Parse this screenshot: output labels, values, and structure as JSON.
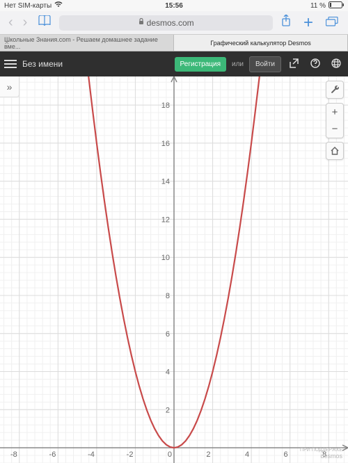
{
  "status": {
    "carrier": "Нет SIM-карты",
    "time": "15:56",
    "battery_pct": "11 %"
  },
  "safari": {
    "url_host": "desmos.com",
    "tabs": [
      {
        "label": "Школьные Знания.com - Решаем домашнее задание вме...",
        "active": false
      },
      {
        "label": "Графический калькулятор Desmos",
        "active": true
      }
    ]
  },
  "app_toolbar": {
    "title": "Без имени",
    "register": "Регистрация",
    "or": "или",
    "login": "Войти"
  },
  "graph": {
    "type": "line",
    "function": "y = x^2",
    "curve_color": "#c84a4a",
    "curve_width": 2.2,
    "background": "#ffffff",
    "grid_minor_color": "#f0f0f0",
    "grid_major_color": "#dcdcdc",
    "axis_color": "#808080",
    "tick_color": "#666666",
    "tick_fontsize": 11,
    "xlim": [
      -9,
      9
    ],
    "ylim": [
      -0.8,
      19.5
    ],
    "xtick_step": 2,
    "ytick_step": 2,
    "minor_per_major": 5,
    "x_ticks": [
      -8,
      -6,
      -4,
      -2,
      0,
      2,
      4,
      6,
      8
    ],
    "y_ticks": [
      2,
      4,
      6,
      8,
      10,
      12,
      14,
      16,
      18
    ],
    "points": [
      [
        -4.42,
        19.5
      ],
      [
        -4.2,
        17.64
      ],
      [
        -4,
        16
      ],
      [
        -3.8,
        14.44
      ],
      [
        -3.6,
        12.96
      ],
      [
        -3.4,
        11.56
      ],
      [
        -3.2,
        10.24
      ],
      [
        -3,
        9
      ],
      [
        -2.8,
        7.84
      ],
      [
        -2.6,
        6.76
      ],
      [
        -2.4,
        5.76
      ],
      [
        -2.2,
        4.84
      ],
      [
        -2,
        4
      ],
      [
        -1.8,
        3.24
      ],
      [
        -1.6,
        2.56
      ],
      [
        -1.4,
        1.96
      ],
      [
        -1.2,
        1.44
      ],
      [
        -1,
        1
      ],
      [
        -0.8,
        0.64
      ],
      [
        -0.6,
        0.36
      ],
      [
        -0.4,
        0.16
      ],
      [
        -0.2,
        0.04
      ],
      [
        0,
        0
      ],
      [
        0.2,
        0.04
      ],
      [
        0.4,
        0.16
      ],
      [
        0.6,
        0.36
      ],
      [
        0.8,
        0.64
      ],
      [
        1,
        1
      ],
      [
        1.2,
        1.44
      ],
      [
        1.4,
        1.96
      ],
      [
        1.6,
        2.56
      ],
      [
        1.8,
        3.24
      ],
      [
        2,
        4
      ],
      [
        2.2,
        4.84
      ],
      [
        2.4,
        5.76
      ],
      [
        2.6,
        6.76
      ],
      [
        2.8,
        7.84
      ],
      [
        3,
        9
      ],
      [
        3.2,
        10.24
      ],
      [
        3.4,
        11.56
      ],
      [
        3.6,
        12.96
      ],
      [
        3.8,
        14.44
      ],
      [
        4,
        16
      ],
      [
        4.2,
        17.64
      ],
      [
        4.42,
        19.5
      ]
    ]
  },
  "footer": {
    "support": "ПРИ ПОДДЕРЖКЕ",
    "brand": "desmos"
  }
}
